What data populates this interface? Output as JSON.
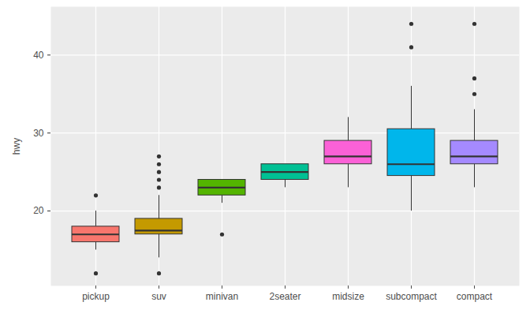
{
  "chart_data": {
    "type": "boxplot",
    "ylabel": "hwy",
    "categories": [
      "pickup",
      "suv",
      "minivan",
      "2seater",
      "midsize",
      "subcompact",
      "compact"
    ],
    "min": [
      15,
      14,
      21,
      23,
      23,
      20,
      23
    ],
    "q1": [
      16,
      17,
      22,
      24,
      26,
      24.5,
      26
    ],
    "median": [
      17,
      17.5,
      23,
      25,
      27,
      26,
      27
    ],
    "q3": [
      18,
      19,
      24,
      26,
      29,
      30.5,
      29
    ],
    "max": [
      20,
      22,
      24,
      26,
      32,
      36,
      33
    ],
    "outliers": [
      [
        12,
        22
      ],
      [
        12,
        23,
        24,
        25,
        26,
        27
      ],
      [
        17
      ],
      [],
      [],
      [
        41,
        44
      ],
      [
        35,
        37,
        44
      ]
    ],
    "colors": [
      "#F8766D",
      "#C49A00",
      "#53B400",
      "#00C094",
      "#FB61D7",
      "#00B6EB",
      "#A58AFF"
    ],
    "ylim": [
      10.4,
      46.2
    ],
    "yticks": [
      20,
      30,
      40
    ],
    "grid": true
  }
}
